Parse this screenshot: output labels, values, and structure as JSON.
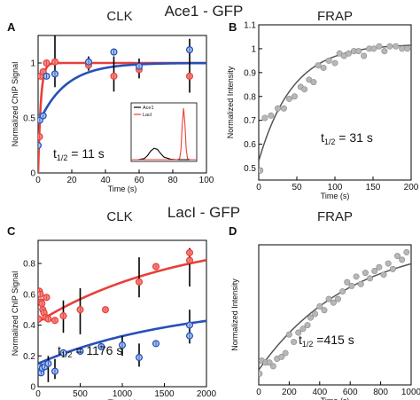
{
  "figure": {
    "section_top_title": "Ace1 - GFP",
    "section_bottom_title": "LacI - GFP"
  },
  "colors": {
    "red": "#e8403a",
    "red_fill": "#f28a86",
    "blue": "#2650b8",
    "blue_fill": "#aec6ee",
    "frap_line": "#555555",
    "frap_marker": "#b7b7b7",
    "error_bar": "#000000"
  },
  "chart_data": [
    {
      "id": "A",
      "panel_letter": "A",
      "type": "scatter",
      "title": "CLK",
      "xlabel": "Time (s)",
      "ylabel": "Normalized ChIP Signal",
      "xlim": [
        0,
        100
      ],
      "ylim": [
        0,
        1.25
      ],
      "xticks": [
        0,
        20,
        40,
        60,
        80,
        100
      ],
      "yticks": [
        0,
        0.5,
        1
      ],
      "annotation": "t1/2 = 11 s",
      "annotation_parts": {
        "t": "t",
        "sub": "1/2",
        "rest": " = 11 s"
      },
      "series": [
        {
          "color_key": "red",
          "points": [
            [
              0,
              0.47
            ],
            [
              0.8,
              0.33
            ],
            [
              1.5,
              0.88
            ],
            [
              3,
              0.92
            ],
            [
              5,
              1.0
            ],
            [
              10,
              1.01
            ],
            [
              30,
              0.98
            ],
            [
              45,
              0.88
            ],
            [
              60,
              0.94
            ],
            [
              90,
              0.88
            ]
          ],
          "errors": [
            0,
            0,
            0,
            0,
            0,
            0,
            0,
            0,
            0,
            0
          ],
          "fit": {
            "kind": "exp",
            "y0": 0.0,
            "yinf": 1.0,
            "k": 0.63
          }
        },
        {
          "color_key": "blue",
          "points": [
            [
              0,
              0.25
            ],
            [
              0.5,
              0.5
            ],
            [
              1,
              0.48
            ],
            [
              3,
              0.52
            ],
            [
              5,
              0.88
            ],
            [
              10,
              0.9
            ],
            [
              30,
              1.01
            ],
            [
              45,
              1.1
            ],
            [
              60,
              0.97
            ],
            [
              90,
              1.12
            ]
          ],
          "errors": [
            0,
            0,
            0,
            0,
            0,
            0.3,
            0.05,
            0,
            0.1,
            0.1
          ],
          "fit": {
            "kind": "exp",
            "y0": 0.44,
            "yinf": 1.0,
            "k": 0.063
          }
        }
      ],
      "error_bars": [
        {
          "x": 10,
          "low": 0.78,
          "high": 1.3
        },
        {
          "x": 30,
          "low": 0.93,
          "high": 1.06
        },
        {
          "x": 45,
          "low": 0.74,
          "high": 1.06
        },
        {
          "x": 60,
          "low": 0.86,
          "high": 1.04
        },
        {
          "x": 90,
          "low": 0.73,
          "high": 1.22
        }
      ],
      "inset": {
        "legend": [
          "Ace1",
          "LacI"
        ],
        "xlim": [
          0,
          10
        ],
        "ylim": [
          0,
          1
        ],
        "series": [
          {
            "name": "Ace1",
            "color_key": "error_bar",
            "x": [
              0,
              1,
              2,
              2.5,
              3,
              3.5,
              4,
              4.5,
              5,
              6,
              7,
              8,
              9,
              10
            ],
            "y": [
              0,
              0,
              0.02,
              0.08,
              0.17,
              0.22,
              0.2,
              0.12,
              0.05,
              0.01,
              0,
              0,
              0,
              0
            ]
          },
          {
            "name": "LacI",
            "color_key": "red",
            "x": [
              0,
              6,
              7,
              7.4,
              7.6,
              7.8,
              8.0,
              8.2,
              8.4,
              8.6,
              9,
              10
            ],
            "y": [
              0,
              0,
              0,
              0.02,
              0.2,
              0.7,
              1.0,
              0.7,
              0.2,
              0.02,
              0,
              0
            ]
          }
        ]
      }
    },
    {
      "id": "B",
      "panel_letter": "B",
      "type": "scatter",
      "title": "FRAP",
      "xlabel": "Time (s)",
      "ylabel": "Normalized Intensity",
      "xlim": [
        0,
        200
      ],
      "ylim": [
        0.45,
        1.1
      ],
      "xticks": [
        0,
        50,
        100,
        150,
        200
      ],
      "yticks": [
        0.5,
        0.6,
        0.7,
        0.8,
        0.9,
        1,
        1.1
      ],
      "annotation": "t1/2 = 31 s",
      "annotation_parts": {
        "t": "t",
        "sub": "1/2",
        "rest": " = 31 s"
      },
      "series": [
        {
          "color_key": "frap_marker",
          "points": [
            [
              2,
              0.49
            ],
            [
              8,
              0.71
            ],
            [
              16,
              0.72
            ],
            [
              25,
              0.75
            ],
            [
              33,
              0.75
            ],
            [
              40,
              0.79
            ],
            [
              47,
              0.8
            ],
            [
              55,
              0.84
            ],
            [
              60,
              0.83
            ],
            [
              66,
              0.87
            ],
            [
              72,
              0.86
            ],
            [
              78,
              0.93
            ],
            [
              85,
              0.92
            ],
            [
              92,
              0.95
            ],
            [
              100,
              0.94
            ],
            [
              106,
              0.98
            ],
            [
              112,
              0.97
            ],
            [
              118,
              0.98
            ],
            [
              125,
              0.99
            ],
            [
              131,
              0.99
            ],
            [
              138,
              0.97
            ],
            [
              145,
              1.0
            ],
            [
              151,
              1.0
            ],
            [
              158,
              1.01
            ],
            [
              165,
              0.99
            ],
            [
              172,
              1.01
            ],
            [
              180,
              1.01
            ],
            [
              188,
              1.0
            ],
            [
              195,
              1.0
            ]
          ],
          "fit": {
            "kind": "exp",
            "y0": 0.53,
            "yinf": 1.02,
            "k": 0.0224
          }
        }
      ]
    },
    {
      "id": "C",
      "panel_letter": "C",
      "type": "scatter",
      "title": "CLK",
      "xlabel": "Time (s)",
      "ylabel": "Normalized ChIP Signal",
      "xlim": [
        0,
        2000
      ],
      "ylim": [
        0,
        0.95
      ],
      "xticks": [
        0,
        500,
        1000,
        1500,
        2000
      ],
      "yticks": [
        0,
        0.2,
        0.4,
        0.6,
        0.8
      ],
      "annotation": "t1/2 = 1176 s",
      "annotation_parts": {
        "t": "t",
        "sub": "1/2",
        "rest": " = 1176 s"
      },
      "series": [
        {
          "color_key": "red",
          "points": [
            [
              5,
              0.44
            ],
            [
              15,
              0.62
            ],
            [
              25,
              0.6
            ],
            [
              35,
              0.55
            ],
            [
              45,
              0.54
            ],
            [
              55,
              0.5
            ],
            [
              70,
              0.48
            ],
            [
              90,
              0.45
            ],
            [
              100,
              0.58
            ],
            [
              120,
              0.44
            ],
            [
              200,
              0.43
            ],
            [
              300,
              0.46
            ],
            [
              500,
              0.5
            ],
            [
              800,
              0.5
            ],
            [
              1200,
              0.68
            ],
            [
              1400,
              0.78
            ],
            [
              1800,
              0.82
            ],
            [
              1800,
              0.87
            ]
          ],
          "fit": {
            "kind": "exp",
            "y0": 0.42,
            "yinf": 1.0,
            "k": 0.00059
          }
        },
        {
          "color_key": "blue",
          "points": [
            [
              5,
              0.12
            ],
            [
              15,
              0.1
            ],
            [
              25,
              0.13
            ],
            [
              35,
              0.09
            ],
            [
              50,
              0.12
            ],
            [
              80,
              0.13
            ],
            [
              120,
              0.15
            ],
            [
              200,
              0.1
            ],
            [
              300,
              0.22
            ],
            [
              500,
              0.23
            ],
            [
              750,
              0.26
            ],
            [
              1000,
              0.27
            ],
            [
              1200,
              0.19
            ],
            [
              1400,
              0.28
            ],
            [
              1800,
              0.33
            ],
            [
              1800,
              0.4
            ]
          ],
          "fit": {
            "kind": "exp",
            "y0": 0.15,
            "yinf": 0.55,
            "k": 0.00059
          }
        }
      ],
      "error_bars": [
        {
          "x": 300,
          "low": 0.35,
          "high": 0.56
        },
        {
          "x": 500,
          "low": 0.34,
          "high": 0.64
        },
        {
          "x": 1200,
          "low": 0.58,
          "high": 0.84
        },
        {
          "x": 1800,
          "low": 0.65,
          "high": 0.9
        },
        {
          "x": 120,
          "low": 0.03,
          "high": 0.2
        },
        {
          "x": 200,
          "low": 0.05,
          "high": 0.18
        },
        {
          "x": 1000,
          "low": 0.2,
          "high": 0.33
        },
        {
          "x": 1200,
          "low": 0.13,
          "high": 0.28
        },
        {
          "x": 1800,
          "low": 0.28,
          "high": 0.5
        }
      ]
    },
    {
      "id": "D",
      "panel_letter": "D",
      "type": "scatter",
      "title": "FRAP",
      "xlabel": "Time (s)",
      "ylabel": "Normalized Intensity",
      "xlim": [
        0,
        1000
      ],
      "ylim": [
        0.3,
        1.05
      ],
      "xticks": [
        0,
        200,
        400,
        600,
        800,
        1000
      ],
      "yticks": [],
      "annotation": "t1/2 =415 s",
      "annotation_parts": {
        "t": "t",
        "sub": "1/2",
        "rest": " =415 s"
      },
      "series": [
        {
          "color_key": "frap_marker",
          "points": [
            [
              5,
              0.36
            ],
            [
              20,
              0.43
            ],
            [
              45,
              0.42
            ],
            [
              70,
              0.42
            ],
            [
              95,
              0.4
            ],
            [
              120,
              0.44
            ],
            [
              150,
              0.45
            ],
            [
              175,
              0.47
            ],
            [
              200,
              0.57
            ],
            [
              230,
              0.53
            ],
            [
              260,
              0.58
            ],
            [
              290,
              0.6
            ],
            [
              320,
              0.62
            ],
            [
              340,
              0.66
            ],
            [
              370,
              0.68
            ],
            [
              400,
              0.72
            ],
            [
              430,
              0.7
            ],
            [
              460,
              0.76
            ],
            [
              490,
              0.74
            ],
            [
              520,
              0.76
            ],
            [
              550,
              0.8
            ],
            [
              580,
              0.85
            ],
            [
              610,
              0.83
            ],
            [
              640,
              0.88
            ],
            [
              670,
              0.84
            ],
            [
              700,
              0.9
            ],
            [
              730,
              0.87
            ],
            [
              760,
              0.91
            ],
            [
              790,
              0.93
            ],
            [
              820,
              0.89
            ],
            [
              850,
              0.95
            ],
            [
              880,
              0.92
            ],
            [
              910,
              0.99
            ],
            [
              940,
              0.97
            ],
            [
              970,
              1.01
            ]
          ],
          "fit": {
            "kind": "exp",
            "y0": 0.38,
            "yinf": 1.08,
            "k": 0.00167
          }
        }
      ]
    }
  ]
}
